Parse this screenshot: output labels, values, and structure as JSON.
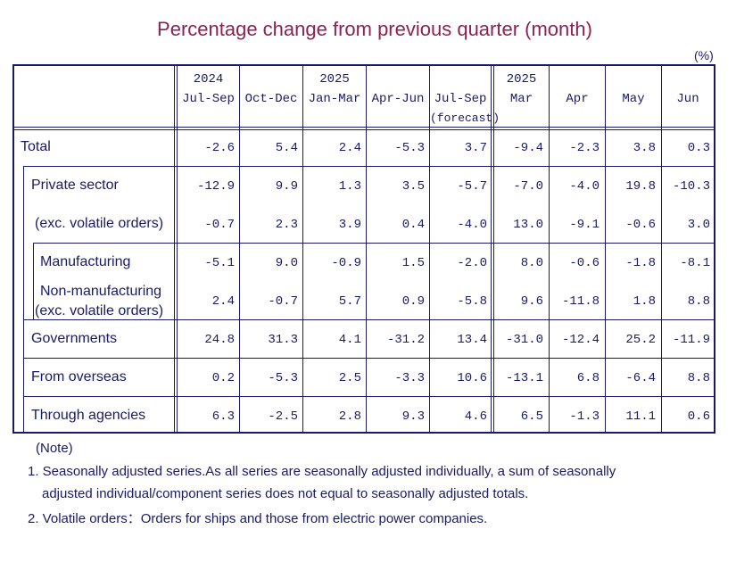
{
  "title": "Percentage change from previous quarter (month)",
  "unit": "(%)",
  "columns": [
    {
      "year": "2024",
      "period": "Jul-Sep",
      "sub": ""
    },
    {
      "year": "",
      "period": "Oct-Dec",
      "sub": ""
    },
    {
      "year": "2025",
      "period": "Jan-Mar",
      "sub": ""
    },
    {
      "year": "",
      "period": "Apr-Jun",
      "sub": ""
    },
    {
      "year": "",
      "period": "Jul-Sep",
      "sub": "(forecast)"
    },
    {
      "year": "2025",
      "period": "Mar",
      "sub": ""
    },
    {
      "year": "",
      "period": "Apr",
      "sub": ""
    },
    {
      "year": "",
      "period": "May",
      "sub": ""
    },
    {
      "year": "",
      "period": "Jun",
      "sub": ""
    }
  ],
  "rows": [
    {
      "label": "Total",
      "label2": "",
      "values": [
        "-2.6",
        "5.4",
        "2.4",
        "-5.3",
        "3.7",
        "-9.4",
        "-2.3",
        "3.8",
        "0.3"
      ]
    },
    {
      "label": "Private sector",
      "label2": "",
      "values": [
        "-12.9",
        "9.9",
        "1.3",
        "3.5",
        "-5.7",
        "-7.0",
        "-4.0",
        "19.8",
        "-10.3"
      ]
    },
    {
      "label": "(exc. volatile orders)",
      "label2": "",
      "values": [
        "-0.7",
        "2.3",
        "3.9",
        "0.4",
        "-4.0",
        "13.0",
        "-9.1",
        "-0.6",
        "3.0"
      ]
    },
    {
      "label": "Manufacturing",
      "label2": "",
      "values": [
        "-5.1",
        "9.0",
        "-0.9",
        "1.5",
        "-2.0",
        "8.0",
        "-0.6",
        "-1.8",
        "-8.1"
      ]
    },
    {
      "label": "Non-manufacturing",
      "label2": "(exc. volatile orders)",
      "values": [
        "2.4",
        "-0.7",
        "5.7",
        "0.9",
        "-5.8",
        "9.6",
        "-11.8",
        "1.8",
        "8.8"
      ]
    },
    {
      "label": "Governments",
      "label2": "",
      "values": [
        "24.8",
        "31.3",
        "4.1",
        "-31.2",
        "13.4",
        "-31.0",
        "-12.4",
        "25.2",
        "-11.9"
      ]
    },
    {
      "label": "From overseas",
      "label2": "",
      "values": [
        "0.2",
        "-5.3",
        "2.5",
        "-3.3",
        "10.6",
        "-13.1",
        "6.8",
        "-6.4",
        "8.8"
      ]
    },
    {
      "label": "Through agencies",
      "label2": "",
      "values": [
        "6.3",
        "-2.5",
        "2.8",
        "9.3",
        "4.6",
        "6.5",
        "-1.3",
        "11.1",
        "0.6"
      ]
    }
  ],
  "notes": {
    "heading": "(Note)",
    "n1a": "1. Seasonally adjusted series.As all series are seasonally adjusted individually,  a sum of seasonally",
    "n1b": "adjusted individual/component series does not equal to seasonally adjusted totals.",
    "n2": "2. Volatile orders：Orders for ships and those from electric power companies."
  }
}
